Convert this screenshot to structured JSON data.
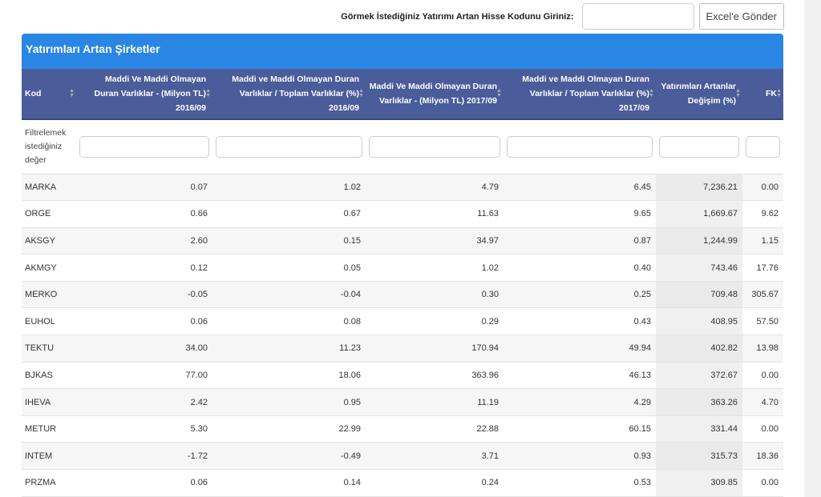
{
  "search": {
    "label": "Görmek İstediğiniz Yatırımı Artan Hisse Kodunu Giriniz:",
    "value": "",
    "excel_button": "Excel'e Gönder"
  },
  "panel": {
    "title": "Yatırımları Artan Şirketler"
  },
  "columns": [
    "Kod",
    "Maddi Ve Maddi Olmayan Duran Varlıklar - (Milyon TL) 2016/09",
    "Maddi ve Maddi Olmayan Duran Varlıklar / Toplam Varlıklar (%) 2016/09",
    "Maddi Ve Maddi Olmayan Duran Varlıklar - (Milyon TL) 2017/09",
    "Maddi ve Maddi Olmayan Duran Varlıklar / Toplam Varlıklar (%) 2017/09",
    "Yatırımları Artanlar Değişim (%)",
    "FK"
  ],
  "filter_label": "Filtrelemek istediğiniz değer",
  "rows": [
    [
      "MARKA",
      "0.07",
      "1.02",
      "4.79",
      "6.45",
      "7,236.21",
      "0.00"
    ],
    [
      "ORGE",
      "0.66",
      "0.67",
      "11.63",
      "9.65",
      "1,669.67",
      "9.62"
    ],
    [
      "AKSGY",
      "2.60",
      "0.15",
      "34.97",
      "0.87",
      "1,244.99",
      "1.15"
    ],
    [
      "AKMGY",
      "0.12",
      "0.05",
      "1.02",
      "0.40",
      "743.46",
      "17.76"
    ],
    [
      "MERKO",
      "-0.05",
      "-0.04",
      "0.30",
      "0.25",
      "709.48",
      "305.67"
    ],
    [
      "EUHOL",
      "0.06",
      "0.08",
      "0.29",
      "0.43",
      "408.95",
      "57.50"
    ],
    [
      "TEKTU",
      "34.00",
      "11.23",
      "170.94",
      "49.94",
      "402.82",
      "13.98"
    ],
    [
      "BJKAS",
      "77.00",
      "18.06",
      "363.96",
      "46.13",
      "372.67",
      "0.00"
    ],
    [
      "IHEVA",
      "2.42",
      "0.95",
      "11.19",
      "4.29",
      "363.26",
      "4.70"
    ],
    [
      "METUR",
      "5.30",
      "22.99",
      "22.88",
      "60.15",
      "331.44",
      "0.00"
    ],
    [
      "INTEM",
      "-1.72",
      "-0.49",
      "3.71",
      "0.93",
      "315.73",
      "18.36"
    ],
    [
      "PRZMA",
      "0.06",
      "0.14",
      "0.24",
      "0.53",
      "309.85",
      "0.00"
    ]
  ]
}
